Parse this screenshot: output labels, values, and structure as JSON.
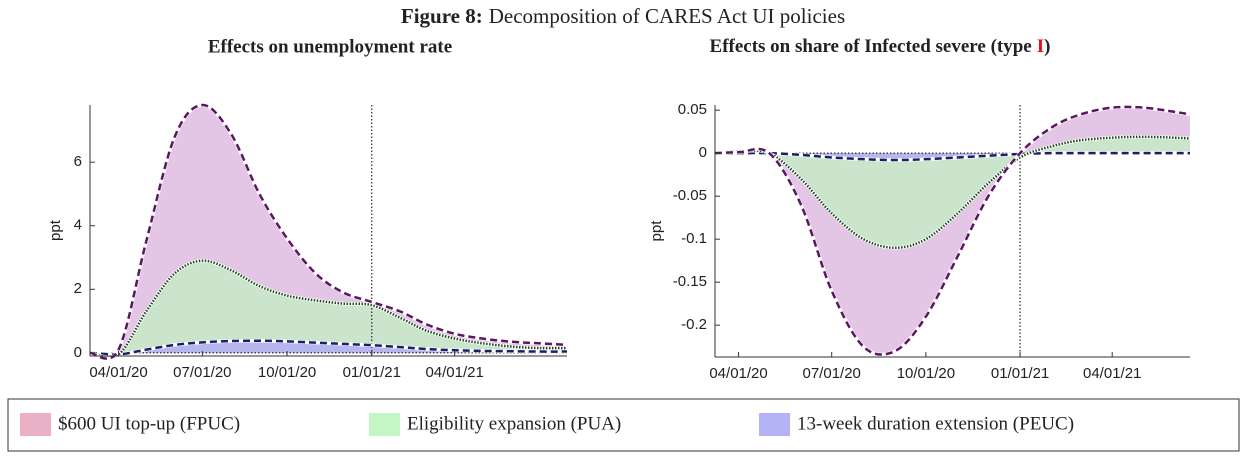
{
  "figure_label": "Figure 8:",
  "figure_title": "Decomposition of CARES Act UI policies",
  "chart_data": [
    {
      "type": "stacked_area",
      "title": "Effects on unemployment rate",
      "ylabel": "ppt",
      "x": [
        "2020-03-01",
        "2020-04-01",
        "2020-05-01",
        "2020-06-01",
        "2020-07-01",
        "2020-08-01",
        "2020-09-01",
        "2020-10-01",
        "2020-11-01",
        "2020-12-01",
        "2021-01-01",
        "2021-02-01",
        "2021-03-01",
        "2021-04-01",
        "2021-05-01",
        "2021-06-01",
        "2021-07-01",
        "2021-08-01"
      ],
      "xlim": [
        "2020-03-01",
        "2021-08-01"
      ],
      "xticks": [
        {
          "value": "2020-04-01",
          "label": "04/01/20"
        },
        {
          "value": "2020-07-01",
          "label": "07/01/20"
        },
        {
          "value": "2020-10-01",
          "label": "10/01/20"
        },
        {
          "value": "2021-01-01",
          "label": "01/01/21"
        },
        {
          "value": "2021-04-01",
          "label": "04/01/21"
        }
      ],
      "ylim": [
        -0.1,
        7.8
      ],
      "yticks": [
        0,
        2,
        4,
        6
      ],
      "vline": "2021-01-01",
      "series": [
        {
          "name": "$600 UI top-up (FPUC)",
          "color": "#e3c6e6",
          "line_color": "#5a1760",
          "legend_color": "#eab0c6",
          "values": [
            0,
            0.15,
            2.2,
            4.3,
            4.9,
            4.3,
            2.9,
            1.8,
            0.85,
            0.35,
            0.1,
            0.2,
            0.2,
            0.15,
            0.15,
            0.15,
            0.15,
            0.1
          ]
        },
        {
          "name": "Eligibility expansion (PUA)",
          "color": "#cbe5cc",
          "line_color": "#1f4a1f",
          "legend_color": "#c4f5c4",
          "values": [
            0,
            0,
            1.2,
            2.25,
            2.57,
            2.23,
            1.72,
            1.44,
            1.33,
            1.27,
            1.26,
            0.92,
            0.58,
            0.37,
            0.24,
            0.15,
            0.11,
            0.11
          ]
        },
        {
          "name": "13-week duration extension (PEUC)",
          "color": "#b6b6ee",
          "line_color": "#1a1f6a",
          "legend_color": "#b3b3f5",
          "values": [
            0,
            -0.05,
            0.1,
            0.25,
            0.33,
            0.37,
            0.38,
            0.36,
            0.32,
            0.28,
            0.24,
            0.18,
            0.12,
            0.08,
            0.06,
            0.05,
            0.04,
            0.04
          ]
        }
      ]
    },
    {
      "type": "stacked_area",
      "title": "Effects on share of Infected severe (type",
      "title_highlight": "I",
      "title_end": ")",
      "ylabel": "ppt",
      "x": [
        "2020-03-09",
        "2020-04-01",
        "2020-05-01",
        "2020-06-01",
        "2020-07-01",
        "2020-08-01",
        "2020-09-01",
        "2020-10-01",
        "2020-11-01",
        "2020-12-01",
        "2021-01-01",
        "2021-02-01",
        "2021-03-01",
        "2021-04-01",
        "2021-05-01",
        "2021-06-01",
        "2021-06-16"
      ],
      "xlim": [
        "2020-03-09",
        "2021-06-16"
      ],
      "xticks": [
        {
          "value": "2020-04-01",
          "label": "04/01/20"
        },
        {
          "value": "2020-07-01",
          "label": "07/01/20"
        },
        {
          "value": "2020-10-01",
          "label": "10/01/20"
        },
        {
          "value": "2021-01-01",
          "label": "01/01/21"
        },
        {
          "value": "2021-04-01",
          "label": "04/01/21"
        }
      ],
      "ylim": [
        -0.237,
        0.056
      ],
      "yticks": [
        -0.2,
        -0.15,
        -0.1,
        -0.05,
        0,
        0.05
      ],
      "vline": "2021-01-01",
      "series": [
        {
          "name": "$600 UI top-up (FPUC)",
          "color": "#e3c6e6",
          "line_color": "#5a1760",
          "values": [
            0,
            -0.001,
            0,
            -0.03,
            -0.09,
            -0.125,
            -0.12,
            -0.09,
            -0.05,
            -0.015,
            0.005,
            0.022,
            0.03,
            0.035,
            0.034,
            0.03,
            0.028
          ]
        },
        {
          "name": "Eligibility expansion (PUA)",
          "color": "#cbe5cc",
          "line_color": "#1f4a1f",
          "values": [
            0,
            0.002,
            0,
            -0.028,
            -0.065,
            -0.093,
            -0.102,
            -0.093,
            -0.065,
            -0.032,
            -0.004,
            0.008,
            0.015,
            0.018,
            0.019,
            0.018,
            0.017
          ]
        },
        {
          "name": "13-week duration extension (PEUC)",
          "color": "#b6b6ee",
          "line_color": "#1a1f6a",
          "values": [
            0,
            0,
            0,
            -0.002,
            -0.005,
            -0.007,
            -0.008,
            -0.007,
            -0.005,
            -0.003,
            -0.001,
            0,
            0,
            0,
            0,
            0,
            0
          ]
        }
      ]
    }
  ]
}
